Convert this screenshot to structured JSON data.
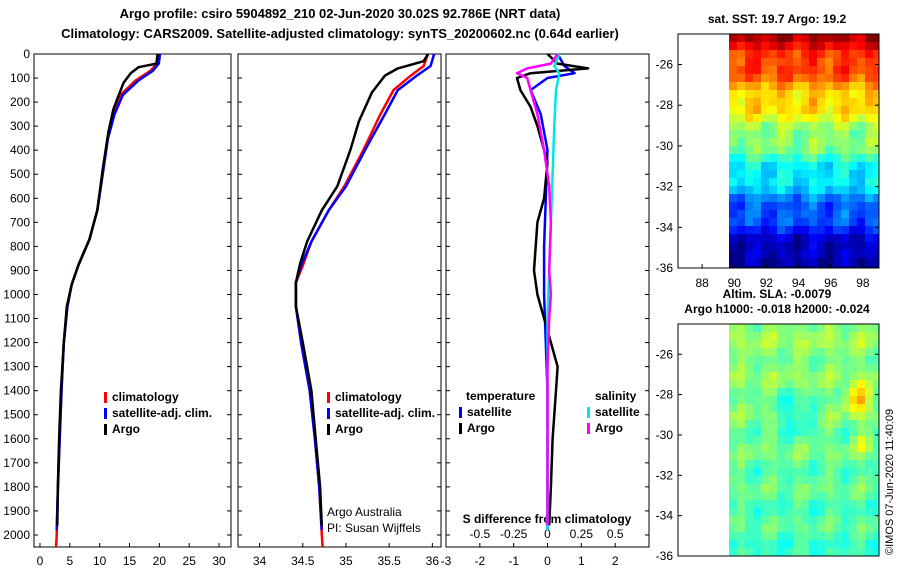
{
  "header": {
    "line1": "Argo profile: csiro 5904892_210 02-Jun-2020 30.02S 92.786E (NRT data)",
    "line2": "Climatology: CARS2009. Satellite-adjusted climatology: synTS_20200602.nc (0.64d earlier)"
  },
  "colors": {
    "climatology": "#ff0000",
    "satellite": "#0000ff",
    "argo": "#000000",
    "sal_satellite": "#00e5e5",
    "sal_argo": "#ff00ff"
  },
  "depth_axis": {
    "ticks": [
      0,
      100,
      200,
      300,
      400,
      500,
      600,
      700,
      800,
      900,
      1000,
      1100,
      1200,
      1300,
      1400,
      1500,
      1600,
      1700,
      1800,
      1900,
      2000
    ],
    "range": [
      0,
      2050
    ]
  },
  "chart_data": [
    {
      "type": "line",
      "id": "temperature",
      "xlabel": "",
      "ylabel": "",
      "xlim": [
        -1,
        32
      ],
      "xticks": [
        0,
        5,
        10,
        15,
        20,
        25,
        30
      ],
      "legend": [
        "climatology",
        "satellite-adj. clim.",
        "Argo"
      ],
      "series": [
        {
          "name": "climatology",
          "color": "#ff0000",
          "points": [
            [
              19.7,
              0
            ],
            [
              19.6,
              40
            ],
            [
              18.5,
              70
            ],
            [
              16,
              110
            ],
            [
              13.5,
              170
            ],
            [
              12.3,
              250
            ],
            [
              11.3,
              350
            ],
            [
              10.5,
              500
            ],
            [
              9.6,
              650
            ],
            [
              8.3,
              770
            ],
            [
              6.4,
              880
            ],
            [
              5.3,
              960
            ],
            [
              4.6,
              1050
            ],
            [
              4.0,
              1200
            ],
            [
              3.6,
              1400
            ],
            [
              3.3,
              1600
            ],
            [
              3.0,
              1800
            ],
            [
              2.8,
              2000
            ],
            [
              2.7,
              2050
            ]
          ]
        },
        {
          "name": "satellite-adj. clim.",
          "color": "#0000ff",
          "points": [
            [
              20.1,
              0
            ],
            [
              19.9,
              40
            ],
            [
              18.9,
              70
            ],
            [
              16.5,
              110
            ],
            [
              13.9,
              170
            ],
            [
              12.5,
              250
            ],
            [
              11.4,
              350
            ],
            [
              10.5,
              500
            ],
            [
              9.6,
              650
            ],
            [
              8.3,
              770
            ],
            [
              6.4,
              880
            ],
            [
              5.3,
              960
            ],
            [
              4.6,
              1050
            ],
            [
              4.0,
              1200
            ],
            [
              3.6,
              1400
            ],
            [
              3.3,
              1600
            ],
            [
              3.0,
              1800
            ],
            [
              2.8,
              1980
            ]
          ]
        },
        {
          "name": "Argo",
          "color": "#000000",
          "points": [
            [
              19.7,
              0
            ],
            [
              19.5,
              40
            ],
            [
              16.5,
              55
            ],
            [
              15.2,
              80
            ],
            [
              14,
              120
            ],
            [
              13.2,
              170
            ],
            [
              12.3,
              230
            ],
            [
              11.5,
              320
            ],
            [
              10.5,
              480
            ],
            [
              9.6,
              650
            ],
            [
              8.3,
              770
            ],
            [
              6.4,
              880
            ],
            [
              5.3,
              960
            ],
            [
              4.5,
              1050
            ],
            [
              4.0,
              1200
            ],
            [
              3.5,
              1400
            ],
            [
              3.2,
              1600
            ],
            [
              3.0,
              1800
            ],
            [
              2.9,
              1960
            ]
          ]
        }
      ]
    },
    {
      "type": "line",
      "id": "salinity",
      "xlabel": "",
      "ylabel": "",
      "xlim": [
        33.75,
        36.1
      ],
      "xticks": [
        34,
        34.5,
        35,
        35.5,
        36
      ],
      "xticklabels": [
        "34",
        "34.5",
        "35",
        "35.5",
        "36"
      ],
      "legend": [
        "climatology",
        "satellite-adj. clim.",
        "Argo"
      ],
      "annotations": [
        "Argo Australia",
        "PI: Susan Wijffels"
      ],
      "series": [
        {
          "name": "climatology",
          "color": "#ff0000",
          "points": [
            [
              35.95,
              0
            ],
            [
              35.9,
              50
            ],
            [
              35.75,
              90
            ],
            [
              35.55,
              150
            ],
            [
              35.4,
              250
            ],
            [
              35.2,
              400
            ],
            [
              34.98,
              550
            ],
            [
              34.8,
              650
            ],
            [
              34.6,
              780
            ],
            [
              34.5,
              880
            ],
            [
              34.42,
              950
            ],
            [
              34.42,
              1050
            ],
            [
              34.48,
              1200
            ],
            [
              34.58,
              1400
            ],
            [
              34.64,
              1600
            ],
            [
              34.69,
              1800
            ],
            [
              34.72,
              2000
            ],
            [
              34.73,
              2050
            ]
          ]
        },
        {
          "name": "satellite-adj. clim.",
          "color": "#0000ff",
          "points": [
            [
              36.02,
              0
            ],
            [
              35.98,
              50
            ],
            [
              35.82,
              90
            ],
            [
              35.6,
              150
            ],
            [
              35.45,
              250
            ],
            [
              35.22,
              400
            ],
            [
              35.0,
              550
            ],
            [
              34.8,
              650
            ],
            [
              34.6,
              780
            ],
            [
              34.48,
              880
            ],
            [
              34.42,
              950
            ],
            [
              34.42,
              1050
            ],
            [
              34.48,
              1200
            ],
            [
              34.58,
              1400
            ],
            [
              34.64,
              1600
            ],
            [
              34.69,
              1800
            ],
            [
              34.72,
              1980
            ]
          ]
        },
        {
          "name": "Argo",
          "color": "#000000",
          "points": [
            [
              35.95,
              0
            ],
            [
              35.9,
              30
            ],
            [
              35.6,
              60
            ],
            [
              35.45,
              90
            ],
            [
              35.3,
              160
            ],
            [
              35.15,
              280
            ],
            [
              35.05,
              400
            ],
            [
              34.9,
              550
            ],
            [
              34.72,
              650
            ],
            [
              34.55,
              780
            ],
            [
              34.47,
              870
            ],
            [
              34.42,
              950
            ],
            [
              34.42,
              1050
            ],
            [
              34.5,
              1200
            ],
            [
              34.6,
              1400
            ],
            [
              34.65,
              1600
            ],
            [
              34.7,
              1800
            ],
            [
              34.72,
              1960
            ]
          ]
        }
      ]
    },
    {
      "type": "line",
      "id": "difference",
      "title": "S difference from climatology",
      "xlim": [
        -3,
        3
      ],
      "temperature_ticks": [
        -3,
        -2,
        -1,
        0,
        1,
        2
      ],
      "salinity_ticklabels": [
        [
          "-0.5",
          -2
        ],
        [
          "-0.25",
          -1
        ],
        [
          "0",
          0
        ],
        [
          "0.25",
          1
        ],
        [
          "0.5",
          2
        ]
      ],
      "legend": {
        "temperature": [
          "satellite",
          "Argo"
        ],
        "salinity": [
          "satellite",
          "Argo"
        ]
      },
      "series": [
        {
          "name": "temperature satellite",
          "color": "#0000ff",
          "points": [
            [
              0.3,
              0
            ],
            [
              0.5,
              50
            ],
            [
              0.8,
              80
            ],
            [
              0,
              100
            ],
            [
              -0.5,
              150
            ],
            [
              -0.2,
              250
            ],
            [
              0,
              400
            ],
            [
              -0.05,
              600
            ],
            [
              -0.1,
              800
            ],
            [
              -0.1,
              1000
            ],
            [
              -0.05,
              1200
            ],
            [
              0,
              1400
            ],
            [
              0,
              1600
            ],
            [
              0,
              1800
            ],
            [
              0,
              1980
            ]
          ]
        },
        {
          "name": "temperature Argo",
          "color": "#000000",
          "points": [
            [
              0,
              0
            ],
            [
              0.3,
              40
            ],
            [
              1.2,
              60
            ],
            [
              -0.5,
              80
            ],
            [
              -0.9,
              100
            ],
            [
              -0.8,
              150
            ],
            [
              -0.5,
              220
            ],
            [
              -0.3,
              300
            ],
            [
              0,
              450
            ],
            [
              -0.1,
              600
            ],
            [
              -0.3,
              700
            ],
            [
              -0.35,
              800
            ],
            [
              -0.4,
              900
            ],
            [
              -0.3,
              1000
            ],
            [
              0.1,
              1200
            ],
            [
              0.3,
              1300
            ],
            [
              0.25,
              1400
            ],
            [
              0.2,
              1500
            ],
            [
              0.15,
              1600
            ],
            [
              0.1,
              1800
            ],
            [
              0.05,
              1960
            ]
          ]
        },
        {
          "name": "salinity satellite",
          "color": "#00e5e5",
          "points": [
            [
              0.35,
              0
            ],
            [
              0.2,
              50
            ],
            [
              0.35,
              80
            ],
            [
              0.25,
              150
            ],
            [
              0.2,
              300
            ],
            [
              0.15,
              500
            ],
            [
              0.1,
              700
            ],
            [
              0.05,
              900
            ],
            [
              0,
              1100
            ],
            [
              0,
              1300
            ],
            [
              0,
              1500
            ],
            [
              0,
              1700
            ],
            [
              0,
              1980
            ]
          ]
        },
        {
          "name": "salinity Argo",
          "color": "#ff00ff",
          "points": [
            [
              0.3,
              0
            ],
            [
              0.1,
              40
            ],
            [
              -0.6,
              60
            ],
            [
              -0.9,
              80
            ],
            [
              -0.6,
              100
            ],
            [
              -0.5,
              150
            ],
            [
              -0.3,
              250
            ],
            [
              -0.1,
              400
            ],
            [
              0.05,
              550
            ],
            [
              0.1,
              700
            ],
            [
              0.05,
              900
            ],
            [
              0.1,
              1000
            ],
            [
              0.05,
              1100
            ],
            [
              0,
              1300
            ],
            [
              0,
              1500
            ],
            [
              0,
              1700
            ],
            [
              0,
              1960
            ]
          ]
        }
      ]
    },
    {
      "type": "heatmap",
      "id": "sst-map",
      "title": "sat. SST: 19.7 Argo: 19.2",
      "xlim": [
        86.5,
        99
      ],
      "ylim": [
        -36,
        -24.5
      ],
      "xticks": [
        88,
        90,
        92,
        94,
        96,
        98
      ],
      "yticks": [
        -26,
        -28,
        -30,
        -32,
        -34,
        -36
      ],
      "data_xlim": [
        90,
        99
      ]
    },
    {
      "type": "heatmap",
      "id": "sla-map",
      "title": "Altim. SLA: -0.0079",
      "subtitle": "Argo h1000: -0.018 h2000: -0.024",
      "ylim": [
        -36,
        -24.5
      ],
      "yticks": [
        -26,
        -28,
        -30,
        -32,
        -34,
        -36
      ],
      "credit": "©IMOS 07-Jun-2020 11:40:09"
    }
  ],
  "legend_labels": {
    "climatology": "climatology",
    "satellite_adj": "satellite-adj. clim.",
    "argo": "Argo",
    "temperature": "temperature",
    "salinity": "salinity",
    "satellite": "satellite"
  }
}
